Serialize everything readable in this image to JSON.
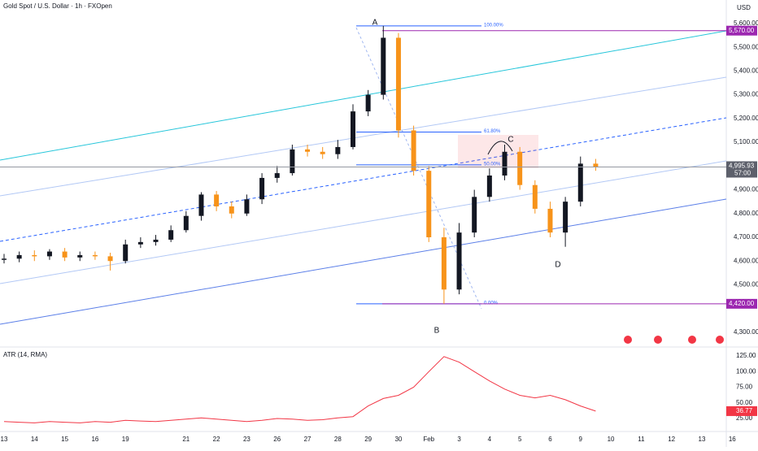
{
  "chart_data": [
    {
      "type": "candlestick",
      "title": "Gold Spot / U.S. Dollar · 1h · FXOpen",
      "currency": "USD",
      "x": [
        0,
        0.5,
        1,
        1.5,
        2,
        2.5,
        3,
        3.5,
        4,
        4.5,
        5,
        5.5,
        6,
        6.5,
        7,
        7.5,
        8,
        8.5,
        9,
        9.5,
        10,
        10.5,
        11,
        11.5,
        12,
        12.5,
        13,
        13.5,
        14,
        14.5,
        15,
        15.5,
        16,
        16.5,
        17,
        17.5,
        18,
        18.5,
        19,
        19.5
      ],
      "open": [
        4605,
        4610,
        4625,
        4620,
        4640,
        4615,
        4625,
        4620,
        4600,
        4670,
        4680,
        4690,
        4730,
        4790,
        4880,
        4830,
        4800,
        4860,
        4950,
        4970,
        5070,
        5060,
        5050,
        5080,
        5230,
        5300,
        5540,
        5150,
        4980,
        4700,
        4480,
        4720,
        4870,
        4960,
        5060,
        4920,
        4820,
        4720,
        4850,
        5010
      ],
      "high": [
        4630,
        4640,
        4645,
        4650,
        4655,
        4640,
        4640,
        4635,
        4690,
        4700,
        4710,
        4750,
        4810,
        4890,
        4895,
        4850,
        4880,
        4970,
        5000,
        5090,
        5090,
        5080,
        5110,
        5260,
        5320,
        5590,
        5560,
        5170,
        5000,
        4740,
        4760,
        4900,
        4990,
        5090,
        5080,
        4940,
        4850,
        4870,
        5040,
        5030
      ],
      "low": [
        4590,
        4595,
        4600,
        4605,
        4600,
        4600,
        4605,
        4560,
        4590,
        4655,
        4665,
        4680,
        4720,
        4770,
        4810,
        4780,
        4790,
        4840,
        4930,
        4960,
        5040,
        5030,
        5030,
        5070,
        5210,
        5280,
        5120,
        4960,
        4680,
        4420,
        4460,
        4700,
        4850,
        4940,
        4900,
        4800,
        4700,
        4660,
        4830,
        4980
      ],
      "close": [
        4610,
        4625,
        4620,
        4640,
        4615,
        4625,
        4620,
        4600,
        4670,
        4680,
        4690,
        4730,
        4790,
        4880,
        4830,
        4800,
        4860,
        4950,
        4970,
        5070,
        5060,
        5050,
        5080,
        5230,
        5300,
        5540,
        5150,
        4980,
        4700,
        4480,
        4720,
        4870,
        4960,
        5060,
        4920,
        4820,
        4720,
        4850,
        5010,
        4995.93
      ],
      "last_price_label": "4,995.93",
      "countdown": "57:00",
      "up_color": "#131722",
      "down_color": "#f7931a",
      "xlim": [
        -0.134,
        24.85
      ],
      "xticks": [
        {
          "value": 0,
          "label": "13"
        },
        {
          "value": 1,
          "label": "14"
        },
        {
          "value": 2,
          "label": "15"
        },
        {
          "value": 3,
          "label": "16"
        },
        {
          "value": 4,
          "label": "19"
        },
        {
          "value": 6,
          "label": "21"
        },
        {
          "value": 7,
          "label": "22"
        },
        {
          "value": 8,
          "label": "23"
        },
        {
          "value": 9,
          "label": "26"
        },
        {
          "value": 10,
          "label": "27"
        },
        {
          "value": 11,
          "label": "28"
        },
        {
          "value": 12,
          "label": "29"
        },
        {
          "value": 13,
          "label": "30"
        },
        {
          "value": 14,
          "label": "Feb"
        },
        {
          "value": 15,
          "label": "3"
        },
        {
          "value": 16,
          "label": "4"
        },
        {
          "value": 17,
          "label": "5"
        },
        {
          "value": 18,
          "label": "6"
        },
        {
          "value": 19,
          "label": "9"
        },
        {
          "value": 20,
          "label": "10"
        },
        {
          "value": 21,
          "label": "11"
        },
        {
          "value": 22,
          "label": "12"
        },
        {
          "value": 23,
          "label": "13"
        },
        {
          "value": 24,
          "label": "16"
        }
      ],
      "ylim": [
        4245,
        5699
      ],
      "yticks": [
        {
          "value": 5600,
          "label": "5,600.00"
        },
        {
          "value": 5500,
          "label": "5,500.00"
        },
        {
          "value": 5400,
          "label": "5,400.00"
        },
        {
          "value": 5300,
          "label": "5,300.00"
        },
        {
          "value": 5200,
          "label": "5,200.00"
        },
        {
          "value": 5100,
          "label": "5,100.00"
        },
        {
          "value": 4900,
          "label": "4,900.00"
        },
        {
          "value": 4800,
          "label": "4,800.00"
        },
        {
          "value": 4700,
          "label": "4,700.00"
        },
        {
          "value": 4600,
          "label": "4,600.00"
        },
        {
          "value": 4500,
          "label": "4,500.00"
        },
        {
          "value": 4300,
          "label": "4,300.00"
        }
      ],
      "levels": [
        {
          "value": 5570,
          "label": "5,570.00",
          "color": "#9c27b0"
        },
        {
          "value": 4420,
          "label": "4,420.00",
          "color": "#9c27b0"
        }
      ],
      "fib": [
        {
          "value": 5590,
          "label": "100.00%"
        },
        {
          "value": 5143,
          "label": "61.80%"
        },
        {
          "value": 5005,
          "label": "50.00%"
        },
        {
          "value": 4420,
          "label": "0.00%"
        }
      ],
      "points": [
        "A",
        "B",
        "C",
        "D"
      ]
    },
    {
      "type": "line",
      "title": "ATR (14, RMA)",
      "color": "#f23645",
      "x": [
        0,
        0.5,
        1,
        1.5,
        2,
        2.5,
        3,
        3.5,
        4,
        4.5,
        5,
        5.5,
        6,
        6.5,
        7,
        7.5,
        8,
        8.5,
        9,
        9.5,
        10,
        10.5,
        11,
        11.5,
        12,
        12.5,
        13,
        13.5,
        14,
        14.5,
        15,
        15.5,
        16,
        16.5,
        17,
        17.5,
        18,
        18.5,
        19,
        19.5
      ],
      "values": [
        20,
        19,
        18,
        20,
        19,
        18,
        20,
        19,
        22,
        21,
        20,
        22,
        24,
        26,
        24,
        22,
        20,
        22,
        25,
        24,
        22,
        23,
        26,
        28,
        45,
        57,
        62,
        75,
        100,
        124,
        115,
        100,
        85,
        72,
        62,
        58,
        62,
        55,
        45,
        36.77
      ],
      "xlim": [
        -0.134,
        24.85
      ],
      "ylim": [
        5.5,
        135.4
      ],
      "yticks": [
        {
          "value": 125,
          "label": "125.00"
        },
        {
          "value": 100,
          "label": "100.00"
        },
        {
          "value": 75,
          "label": "75.00"
        },
        {
          "value": 50,
          "label": "50.00"
        },
        {
          "value": 25,
          "label": "25.00"
        }
      ]
    }
  ]
}
